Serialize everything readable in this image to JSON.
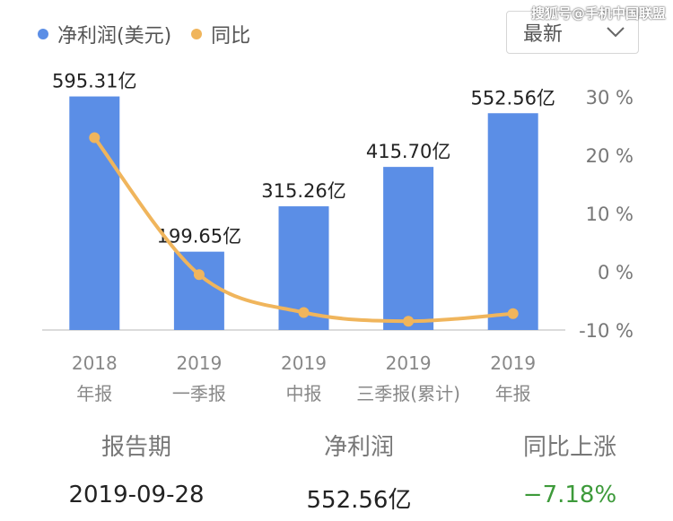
{
  "legend": [
    {
      "label": "净利润(美元)",
      "color": "#5b8ee6"
    },
    {
      "label": "同比",
      "color": "#f0b55c"
    }
  ],
  "dropdown": {
    "selected": "最新"
  },
  "watermark": "搜狐号@手机中国联盟",
  "chart_data": {
    "type": "bar",
    "categories": [
      [
        "2018",
        "年报"
      ],
      [
        "2019",
        "一季报"
      ],
      [
        "2019",
        "中报"
      ],
      [
        "2019",
        "三季报(累计)"
      ],
      [
        "2019",
        "年报"
      ]
    ],
    "series": [
      {
        "name": "净利润(美元)",
        "type": "bar",
        "values": [
          595.31,
          199.65,
          315.26,
          415.7,
          552.56
        ],
        "labels": [
          "595.31亿",
          "199.65亿",
          "315.26亿",
          "415.70亿",
          "552.56亿"
        ],
        "color": "#5b8ee6"
      },
      {
        "name": "同比",
        "type": "line",
        "values": [
          23,
          -0.5,
          -7,
          -8.5,
          -7.2
        ],
        "color": "#f0b55c"
      }
    ],
    "y_left_range": [
      0,
      640
    ],
    "y_right_ticks": [
      "30 %",
      "20 %",
      "10 %",
      "0 %",
      "-10 %"
    ],
    "y_right_range": [
      -10,
      30
    ]
  },
  "summary": {
    "headers": [
      "报告期",
      "净利润",
      "同比上涨"
    ],
    "values": [
      "2019-09-28",
      "552.56亿",
      "−7.18%"
    ]
  }
}
